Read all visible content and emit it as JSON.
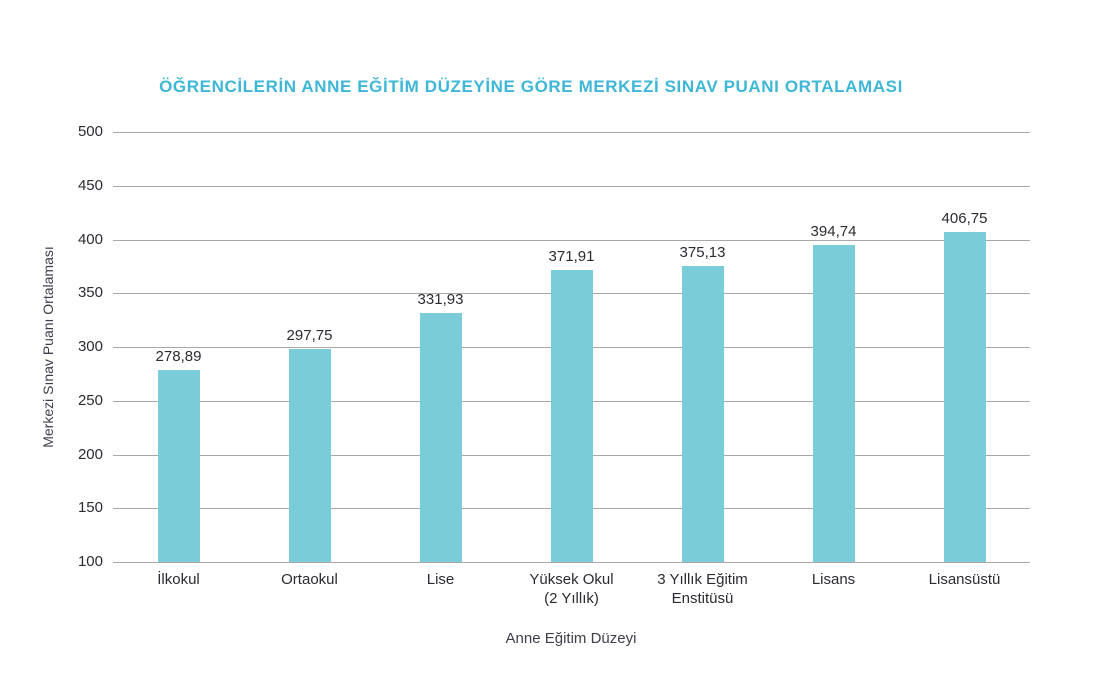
{
  "chart_data": {
    "type": "bar",
    "title": "ÖĞRENCİLERİN ANNE EĞİTİM DÜZEYİNE GÖRE MERKEZİ SINAV PUANI ORTALAMASI",
    "xlabel": "Anne Eğitim Düzeyi",
    "ylabel": "Merkezi Sınav Puanı Ortalaması",
    "categories": [
      "İlkokul",
      "Ortaokul",
      "Lise",
      "Yüksek Okul\n(2 Yıllık)",
      "3 Yıllık Eğitim\nEnstitüsü",
      "Lisans",
      "Lisansüstü"
    ],
    "values": [
      278.89,
      297.75,
      331.93,
      371.91,
      375.13,
      394.74,
      406.75
    ],
    "value_labels": [
      "278,89",
      "297,75",
      "331,93",
      "371,91",
      "375,13",
      "394,74",
      "406,75"
    ],
    "ylim": [
      100,
      500
    ],
    "yticks": [
      100,
      150,
      200,
      250,
      300,
      350,
      400,
      450,
      500
    ],
    "grid": true,
    "legend": "none",
    "colors": {
      "title": "#3eb7d7",
      "bar": "#7bccd9",
      "grid": "#a8a8a8",
      "text": "#2b2b31",
      "axis_title": "#3e3e48"
    }
  }
}
